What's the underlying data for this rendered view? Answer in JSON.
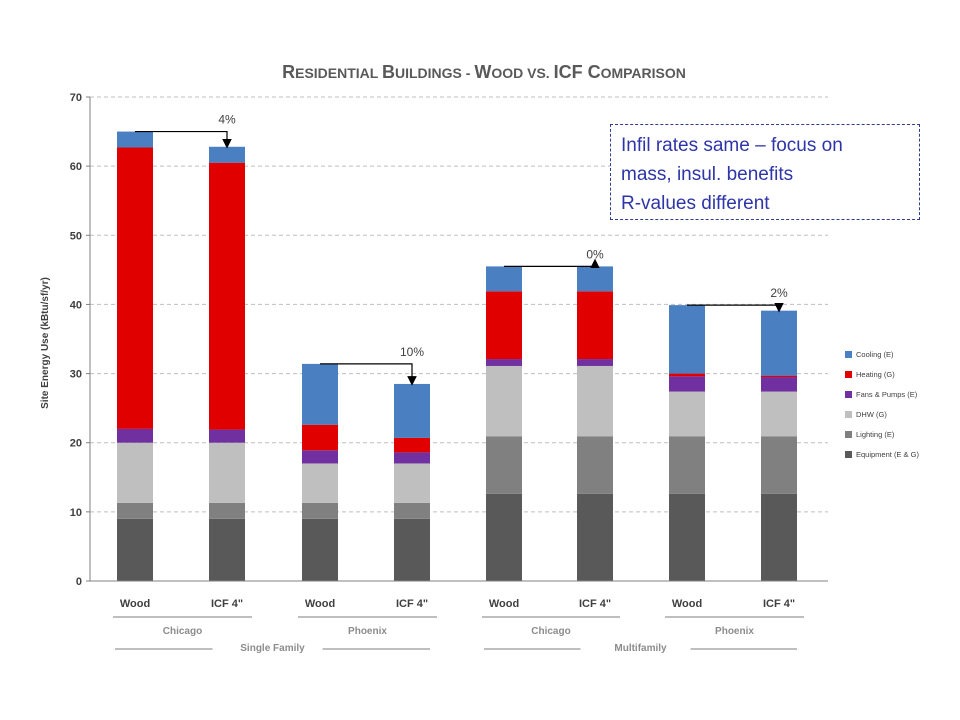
{
  "chart_data": {
    "type": "bar",
    "stacked": true,
    "title_parts": [
      {
        "big": "R",
        "small": "ESIDENTIAL "
      },
      {
        "big": "B",
        "small": "UILDINGS - "
      },
      {
        "big": "W",
        "small": "OOD VS. "
      },
      {
        "big": "ICF ",
        "small": ""
      },
      {
        "big": "C",
        "small": "OMPARISON"
      }
    ],
    "ylabel": "Site Energy Use (kBtu/sf/yr)",
    "ylim": [
      0,
      70
    ],
    "yticks": [
      0,
      10,
      20,
      30,
      40,
      50,
      60,
      70
    ],
    "grid": true,
    "legend_position": "right",
    "categories": [
      "Wood",
      "ICF 4\"",
      "Wood",
      "ICF 4\"",
      "Wood",
      "ICF 4\"",
      "Wood",
      "ICF 4\""
    ],
    "series": [
      {
        "name": "Equipment  (E & G)",
        "color": "#595959",
        "values": [
          9.0,
          9.0,
          9.0,
          9.0,
          12.6,
          12.6,
          12.6,
          12.6
        ]
      },
      {
        "name": "Lighting (E)",
        "color": "#808080",
        "values": [
          2.3,
          2.3,
          2.3,
          2.3,
          8.3,
          8.3,
          8.3,
          8.3
        ]
      },
      {
        "name": "DHW (G)",
        "color": "#bfbfbf",
        "values": [
          8.7,
          8.7,
          5.7,
          5.7,
          10.2,
          10.2,
          6.5,
          6.5
        ]
      },
      {
        "name": "Fans & Pumps  (E)",
        "color": "#7030a0",
        "values": [
          2.0,
          1.9,
          1.9,
          1.6,
          1.0,
          1.0,
          2.2,
          2.1
        ]
      },
      {
        "name": "Heating (G)",
        "color": "#e00000",
        "values": [
          40.7,
          38.6,
          3.7,
          2.1,
          9.8,
          9.8,
          0.4,
          0.2
        ]
      },
      {
        "name": "Cooling  (E)",
        "color": "#4a7fc1",
        "values": [
          2.3,
          2.3,
          8.8,
          7.8,
          3.6,
          3.6,
          9.9,
          9.4
        ]
      }
    ],
    "legend_order": [
      "Cooling  (E)",
      "Heating (G)",
      "Fans & Pumps  (E)",
      "DHW (G)",
      "Lighting (E)",
      "Equipment  (E & G)"
    ],
    "annotations": [
      {
        "from": 0,
        "to": 1,
        "label": "4%"
      },
      {
        "from": 2,
        "to": 3,
        "label": "10%"
      },
      {
        "from": 4,
        "to": 5,
        "label": "0%"
      },
      {
        "from": 6,
        "to": 7,
        "label": "2%"
      }
    ],
    "location_groups": [
      {
        "label": "Chicago",
        "bars": [
          0,
          1
        ]
      },
      {
        "label": "Phoenix",
        "bars": [
          2,
          3
        ]
      },
      {
        "label": "Chicago",
        "bars": [
          4,
          5
        ]
      },
      {
        "label": "Phoenix",
        "bars": [
          6,
          7
        ]
      }
    ],
    "type_groups": [
      {
        "label": "Single Family",
        "bars": [
          0,
          3
        ]
      },
      {
        "label": "Multifamily",
        "bars": [
          4,
          7
        ]
      }
    ]
  },
  "note": {
    "lines": [
      "Infil rates same – focus on",
      "mass, insul. benefits",
      "R-values different"
    ]
  }
}
